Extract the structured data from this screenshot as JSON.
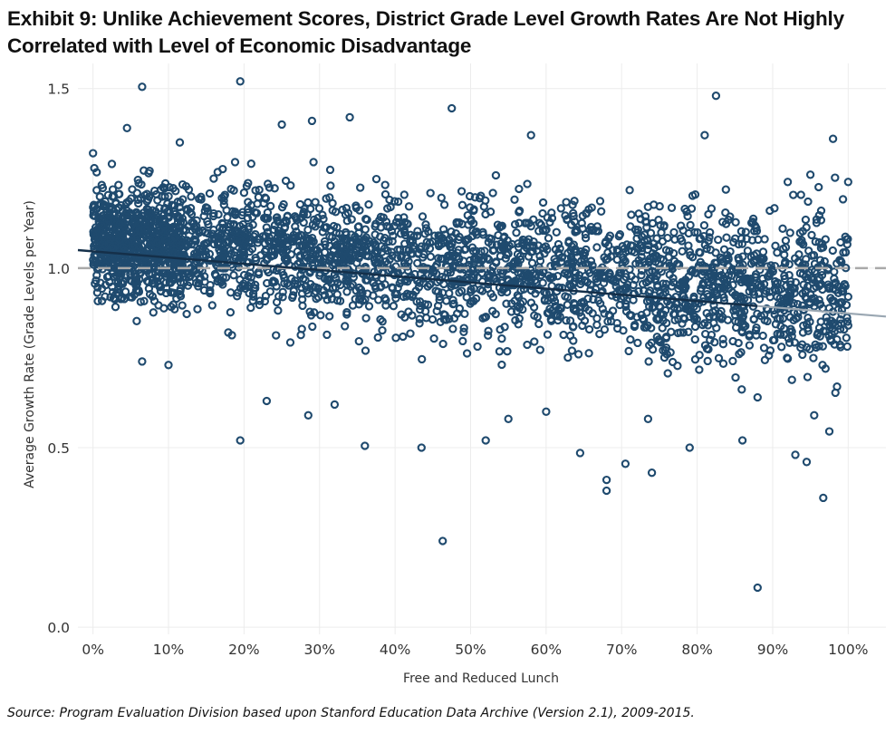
{
  "title": "Exhibit 9: Unlike Achievement Scores, District Grade Level Growth Rates Are Not Highly Correlated with Level of Economic Disadvantage",
  "source": "Source: Program Evaluation Division based upon Stanford Education Data Archive (Version 2.1), 2009-2015.",
  "chart_data": {
    "type": "scatter",
    "xlabel": "Free and Reduced Lunch",
    "ylabel": "Average Growth Rate (Grade Levels per Year)",
    "xlim": [
      -0.02,
      1.05
    ],
    "ylim": [
      -0.02,
      1.57
    ],
    "xticks": [
      0,
      0.1,
      0.2,
      0.3,
      0.4,
      0.5,
      0.6,
      0.7,
      0.8,
      0.9,
      1.0
    ],
    "xtick_labels": [
      "0%",
      "10%",
      "20%",
      "30%",
      "40%",
      "50%",
      "60%",
      "70%",
      "80%",
      "90%",
      "100%"
    ],
    "yticks": [
      0,
      0.5,
      1.0,
      1.5
    ],
    "ytick_labels": [
      "0.0",
      "0.5",
      "1.0",
      "1.5"
    ],
    "grid": true,
    "colors": {
      "points": "#1f4a6e",
      "trend": "#15304a",
      "trend_extension": "#9aa7b2",
      "reference": "#a9a9a9",
      "grid": "#ececec"
    },
    "reference_line": {
      "y": 1.0,
      "style": "dashed"
    },
    "trend_line": {
      "x": [
        -0.02,
        1.05
      ],
      "y": [
        1.05,
        0.865
      ],
      "solid_until_x": 0.88
    },
    "point_cloud": {
      "description_of_density": "dense cloud of thousands of districts",
      "x_range": [
        0.0,
        1.0
      ],
      "center_y_at_x0": 1.08,
      "center_y_at_x1": 0.92,
      "spread_sd": 0.09
    },
    "points": [
      {
        "x": 0.065,
        "y": 1.505
      },
      {
        "x": 0.195,
        "y": 1.52
      },
      {
        "x": 0.825,
        "y": 1.48
      },
      {
        "x": 0.475,
        "y": 1.445
      },
      {
        "x": 0.045,
        "y": 1.39
      },
      {
        "x": 0.25,
        "y": 1.4
      },
      {
        "x": 0.34,
        "y": 1.42
      },
      {
        "x": 0.29,
        "y": 1.41
      },
      {
        "x": 0.115,
        "y": 1.35
      },
      {
        "x": 0.58,
        "y": 1.37
      },
      {
        "x": 0.81,
        "y": 1.37
      },
      {
        "x": 0.98,
        "y": 1.36
      },
      {
        "x": 0.195,
        "y": 0.52
      },
      {
        "x": 0.285,
        "y": 0.59
      },
      {
        "x": 0.36,
        "y": 0.505
      },
      {
        "x": 0.435,
        "y": 0.5
      },
      {
        "x": 0.52,
        "y": 0.52
      },
      {
        "x": 0.645,
        "y": 0.485
      },
      {
        "x": 0.68,
        "y": 0.41
      },
      {
        "x": 0.68,
        "y": 0.38
      },
      {
        "x": 0.705,
        "y": 0.455
      },
      {
        "x": 0.74,
        "y": 0.43
      },
      {
        "x": 0.79,
        "y": 0.5
      },
      {
        "x": 0.86,
        "y": 0.52
      },
      {
        "x": 0.93,
        "y": 0.48
      },
      {
        "x": 0.945,
        "y": 0.46
      },
      {
        "x": 0.967,
        "y": 0.36
      },
      {
        "x": 0.463,
        "y": 0.24
      },
      {
        "x": 0.88,
        "y": 0.11
      },
      {
        "x": 0.975,
        "y": 0.545
      },
      {
        "x": 0.955,
        "y": 0.59
      },
      {
        "x": 0.95,
        "y": 1.26
      },
      {
        "x": 1.0,
        "y": 1.24
      },
      {
        "x": 0.92,
        "y": 1.24
      },
      {
        "x": 0.0,
        "y": 1.32
      },
      {
        "x": 0.005,
        "y": 0.98
      },
      {
        "x": 0.025,
        "y": 1.29
      },
      {
        "x": 0.065,
        "y": 0.74
      },
      {
        "x": 0.1,
        "y": 0.73
      },
      {
        "x": 0.23,
        "y": 0.63
      },
      {
        "x": 0.32,
        "y": 0.62
      },
      {
        "x": 0.55,
        "y": 0.58
      },
      {
        "x": 0.6,
        "y": 0.6
      },
      {
        "x": 0.735,
        "y": 0.58
      },
      {
        "x": 0.88,
        "y": 0.64
      },
      {
        "x": 0.97,
        "y": 0.72
      },
      {
        "x": 0.99,
        "y": 0.78
      },
      {
        "x": 1.0,
        "y": 0.84
      },
      {
        "x": 1.0,
        "y": 0.92
      },
      {
        "x": 0.99,
        "y": 1.02
      },
      {
        "x": 0.97,
        "y": 1.08
      }
    ]
  }
}
